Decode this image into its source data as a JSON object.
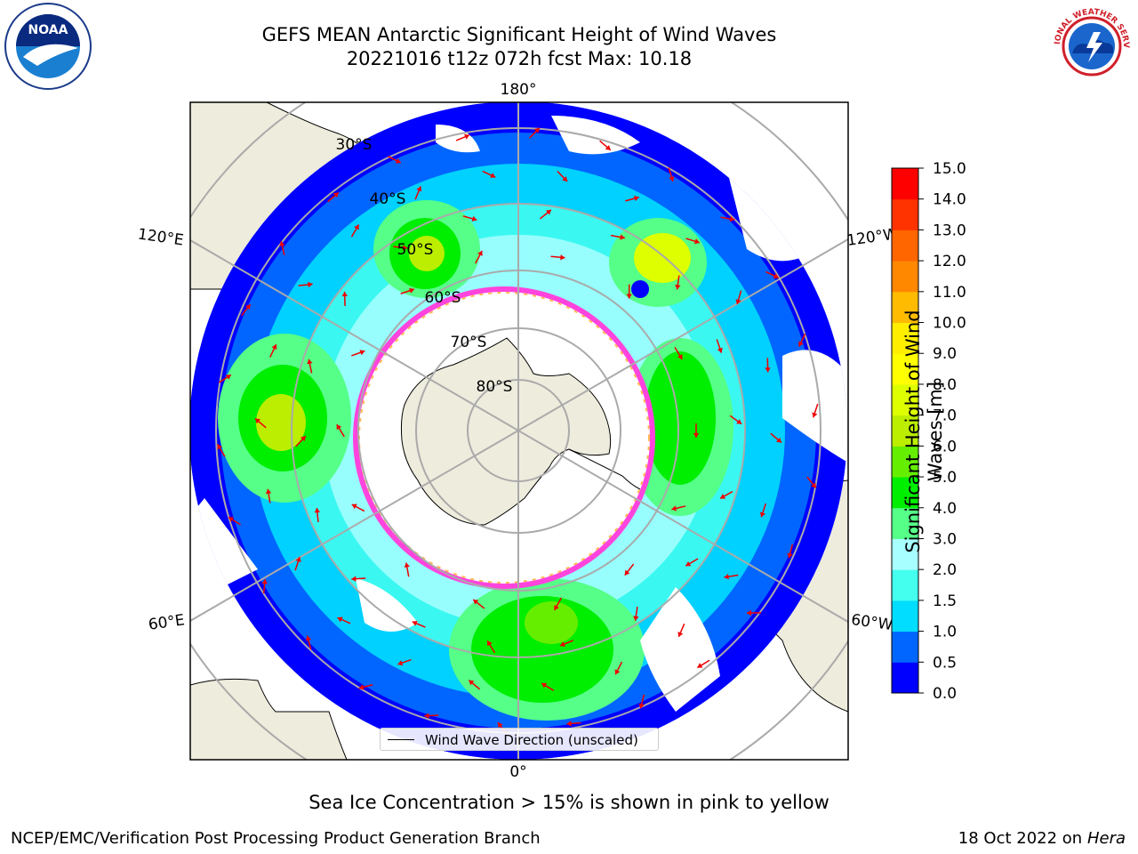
{
  "title": {
    "line1": "GEFS MEAN Antarctic Significant Height of Wind Waves",
    "line2": "20221016 t12z 072h fcst   Max: 10.18"
  },
  "map": {
    "projection": "south-polar-stereographic",
    "longitude_labels": {
      "top": "180°",
      "bottom": "0°",
      "upper_left": "120°E",
      "upper_right": "120°W",
      "lower_left": "60°E",
      "lower_right": "60°W"
    },
    "latitude_labels": [
      "30°S",
      "40°S",
      "50°S",
      "60°S",
      "70°S",
      "80°S"
    ],
    "legend_text": "Wind Wave Direction (unscaled)",
    "land_color": "#eeecdd",
    "ice_edge_color": "#ff44dd",
    "arrow_color": "#ee0000"
  },
  "colorbar": {
    "label": "Significant Height of Wind Waves [m]",
    "ticks": [
      "0.0",
      "0.5",
      "1.0",
      "1.5",
      "2.0",
      "3.0",
      "4.0",
      "5.0",
      "6.0",
      "7.0",
      "8.0",
      "9.0",
      "10.0",
      "11.0",
      "12.0",
      "13.0",
      "14.0",
      "15.0"
    ],
    "colors": [
      "#0000ff",
      "#0066ff",
      "#00ddff",
      "#44ffee",
      "#a8ffff",
      "#55ff88",
      "#00ee00",
      "#66ee00",
      "#bbee00",
      "#ddff00",
      "#ffff00",
      "#ffee00",
      "#ffbb00",
      "#ff8800",
      "#ff6600",
      "#ff3300",
      "#ff0000"
    ]
  },
  "footer": {
    "note": "Sea Ice Concentration > 15% is shown in pink to yellow",
    "left": "NCEP/EMC/Verification Post Processing Product Generation Branch",
    "right_date": "18 Oct 2022 on ",
    "right_machine": "Hera"
  },
  "logos": {
    "left": "NOAA",
    "right": "NATIONAL WEATHER SERVICE"
  }
}
